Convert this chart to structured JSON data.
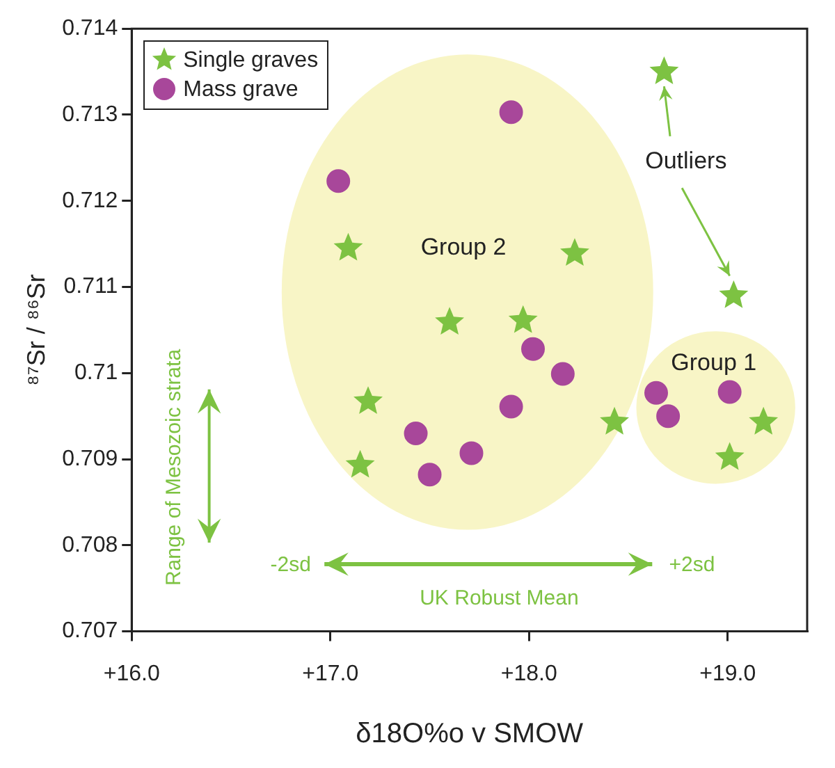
{
  "chart_data": {
    "type": "scatter",
    "xlabel": "δ18O%o v SMOW",
    "ylabel": "⁸⁷Sr / ⁸⁶Sr",
    "xlim": [
      16,
      19.4
    ],
    "xticks": [
      {
        "value": 16,
        "label": "+16.0"
      },
      {
        "value": 17,
        "label": "+17.0"
      },
      {
        "value": 18,
        "label": "+18.0"
      },
      {
        "value": 19,
        "label": "+19.0"
      }
    ],
    "ylim": [
      0.707,
      0.714
    ],
    "yticks": [
      0.707,
      0.708,
      0.709,
      0.71,
      0.711,
      0.712,
      0.713,
      0.714
    ],
    "grid": false,
    "legend": "top left",
    "series": [
      {
        "name": "Single graves",
        "color": "#7dc242",
        "marker": "star",
        "x": [
          18.68,
          19.03,
          17.09,
          18.23,
          17.6,
          17.97,
          17.19,
          17.15,
          18.43,
          19.18,
          19.01
        ],
        "values": [
          0.7135,
          0.7109,
          0.71145,
          0.71139,
          0.71059,
          0.71061,
          0.70967,
          0.70893,
          0.70943,
          0.70943,
          0.70902
        ]
      },
      {
        "name": "Mass grave",
        "color": "#a8479a",
        "marker": "circle",
        "x": [
          17.91,
          17.04,
          18.02,
          18.17,
          17.91,
          17.43,
          17.71,
          17.5,
          18.64,
          18.7,
          19.01
        ],
        "values": [
          0.71303,
          0.71223,
          0.71028,
          0.70999,
          0.70961,
          0.7093,
          0.70907,
          0.70882,
          0.70977,
          0.7095,
          0.70978
        ]
      }
    ],
    "annotations": [
      "Group 2",
      "Group 1",
      "Outliers",
      "Range of Mesozoic strata",
      "-2sd",
      "+2sd",
      "UK Robust Mean"
    ]
  }
}
